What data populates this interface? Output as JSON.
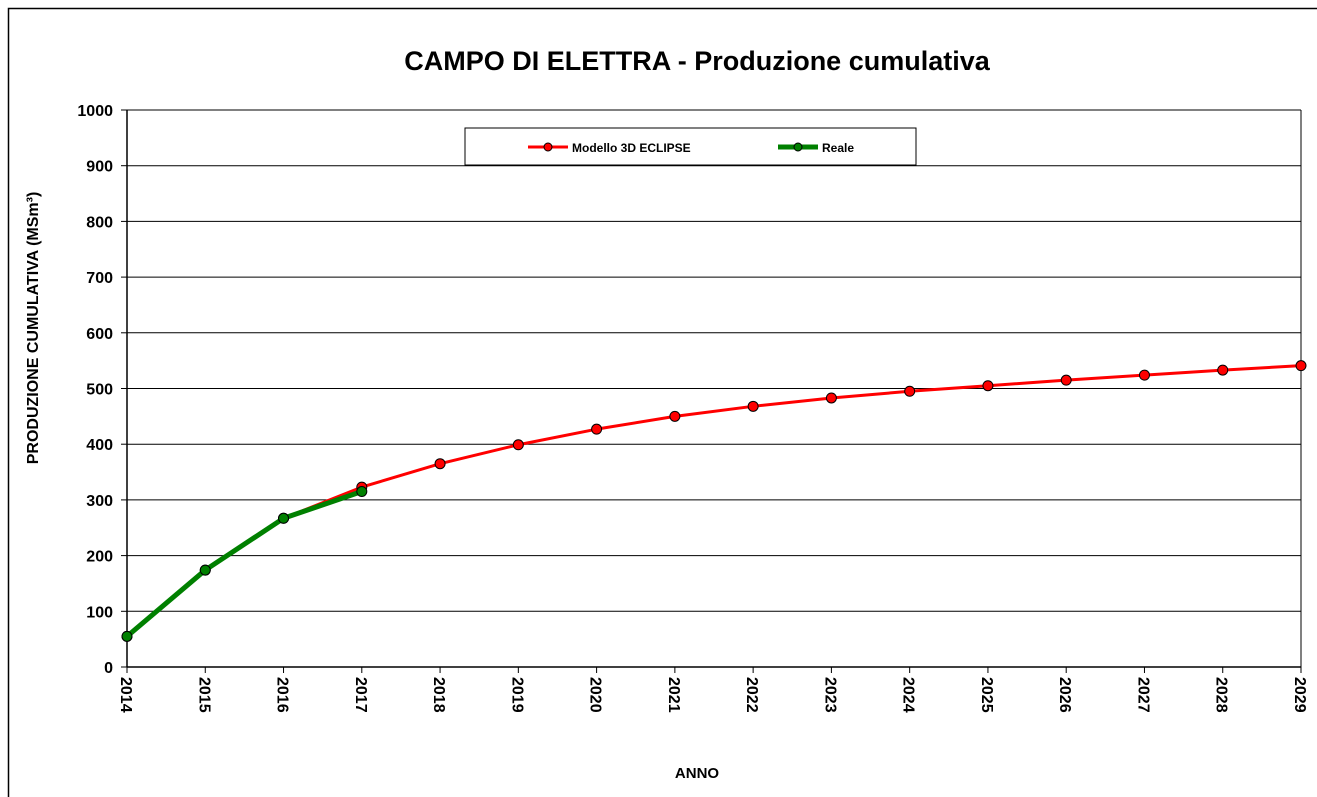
{
  "chart_data": {
    "type": "line",
    "title": "CAMPO DI ELETTRA - Produzione cumulativa",
    "x_label": "ANNO",
    "y_label": "PRODUZIONE CUMULATIVA (MSm³)",
    "x": [
      2014,
      2015,
      2016,
      2017,
      2018,
      2019,
      2020,
      2021,
      2022,
      2023,
      2024,
      2025,
      2026,
      2027,
      2028,
      2029
    ],
    "xlim": [
      2014,
      2029
    ],
    "xticks": [
      2014,
      2015,
      2016,
      2017,
      2018,
      2019,
      2020,
      2021,
      2022,
      2023,
      2024,
      2025,
      2026,
      2027,
      2028,
      2029
    ],
    "ylim": [
      0,
      1000
    ],
    "yticks": [
      0,
      100,
      200,
      300,
      400,
      500,
      600,
      700,
      800,
      900,
      1000
    ],
    "grid": true,
    "legend": "top",
    "series": [
      {
        "name": "Modello 3D ECLIPSE",
        "color": "#ff0000",
        "width": 3,
        "values": [
          55,
          174,
          267,
          323,
          365,
          399,
          427,
          450,
          468,
          483,
          495,
          505,
          515,
          524,
          533,
          541
        ]
      },
      {
        "name": "Reale",
        "color": "#008000",
        "width": 5,
        "values": [
          55,
          174,
          267,
          315,
          null,
          null,
          null,
          null,
          null,
          null,
          null,
          null,
          null,
          null,
          null,
          null
        ]
      }
    ]
  }
}
